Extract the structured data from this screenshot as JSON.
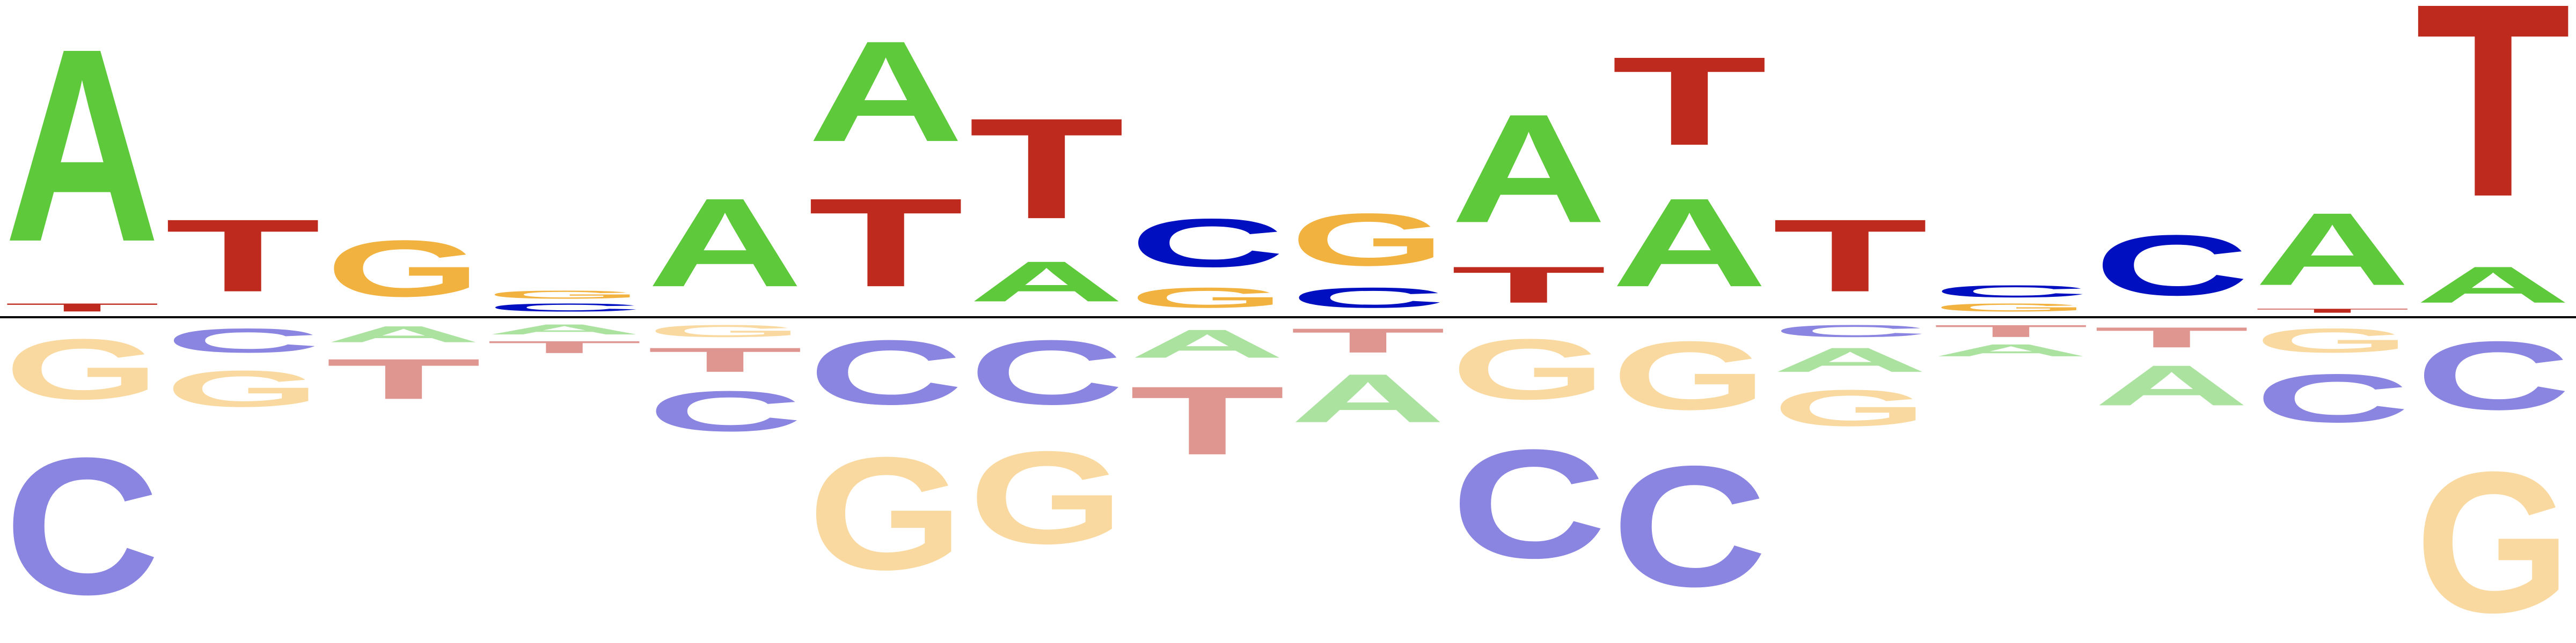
{
  "chart_data": {
    "type": "sequence-logo",
    "note": "Positive letters stacked above baseline (enriched), negative letters below (depleted). Heights in arbitrary units read from glyph sizes.",
    "colors": {
      "A": "#5ec93a",
      "C": "#0010c0",
      "G": "#f2b240",
      "T": "#bf2a1e",
      "A_neg": "#abe2a0",
      "C_neg": "#8a85e0",
      "G_neg": "#f9d9a0",
      "T_neg": "#df9690"
    },
    "positions": [
      {
        "index": 1,
        "up": [
          {
            "letter": "T",
            "h": 0.2
          },
          {
            "letter": "A",
            "h": 4.8
          }
        ],
        "down": [
          {
            "letter": "G",
            "h": 1.5
          },
          {
            "letter": "C",
            "h": 3.4
          }
        ]
      },
      {
        "index": 2,
        "up": [
          {
            "letter": "T",
            "h": 1.8
          }
        ],
        "down": [
          {
            "letter": "C",
            "h": 0.6
          },
          {
            "letter": "G",
            "h": 0.9
          }
        ]
      },
      {
        "index": 3,
        "up": [
          {
            "letter": "G",
            "h": 1.4
          }
        ],
        "down": [
          {
            "letter": "A",
            "h": 0.4
          },
          {
            "letter": "T",
            "h": 1.0
          }
        ]
      },
      {
        "index": 4,
        "up": [
          {
            "letter": "C",
            "h": 0.2
          },
          {
            "letter": "G",
            "h": 0.2
          }
        ],
        "down": [
          {
            "letter": "A",
            "h": 0.25
          },
          {
            "letter": "T",
            "h": 0.3
          }
        ]
      },
      {
        "index": 5,
        "up": [
          {
            "letter": "A",
            "h": 2.2
          }
        ],
        "down": [
          {
            "letter": "G",
            "h": 0.3
          },
          {
            "letter": "T",
            "h": 0.6
          },
          {
            "letter": "C",
            "h": 1.0
          }
        ]
      },
      {
        "index": 6,
        "up": [
          {
            "letter": "T",
            "h": 2.2
          },
          {
            "letter": "A",
            "h": 2.5
          }
        ],
        "down": [
          {
            "letter": "C",
            "h": 1.6
          },
          {
            "letter": "G",
            "h": 2.8
          }
        ]
      },
      {
        "index": 7,
        "up": [
          {
            "letter": "A",
            "h": 1.0
          },
          {
            "letter": "T",
            "h": 2.5
          }
        ],
        "down": [
          {
            "letter": "C",
            "h": 1.6
          },
          {
            "letter": "G",
            "h": 2.3
          }
        ]
      },
      {
        "index": 8,
        "up": [
          {
            "letter": "G",
            "h": 0.5
          },
          {
            "letter": "C",
            "h": 1.2
          }
        ],
        "down": [
          {
            "letter": "A",
            "h": 0.7
          },
          {
            "letter": "T",
            "h": 1.7
          }
        ]
      },
      {
        "index": 9,
        "up": [
          {
            "letter": "C",
            "h": 0.5
          },
          {
            "letter": "G",
            "h": 1.3
          }
        ],
        "down": [
          {
            "letter": "T",
            "h": 0.6
          },
          {
            "letter": "A",
            "h": 1.2
          }
        ]
      },
      {
        "index": 10,
        "up": [
          {
            "letter": "T",
            "h": 0.9
          },
          {
            "letter": "A",
            "h": 2.7
          }
        ],
        "down": [
          {
            "letter": "G",
            "h": 1.5
          },
          {
            "letter": "C",
            "h": 2.7
          }
        ]
      },
      {
        "index": 11,
        "up": [
          {
            "letter": "A",
            "h": 2.2
          },
          {
            "letter": "T",
            "h": 2.2
          }
        ],
        "down": [
          {
            "letter": "G",
            "h": 1.7
          },
          {
            "letter": "C",
            "h": 3.0
          }
        ]
      },
      {
        "index": 12,
        "up": [
          {
            "letter": "T",
            "h": 1.8
          }
        ],
        "down": [
          {
            "letter": "C",
            "h": 0.3
          },
          {
            "letter": "A",
            "h": 0.6
          },
          {
            "letter": "G",
            "h": 0.9
          }
        ]
      },
      {
        "index": 13,
        "up": [
          {
            "letter": "G",
            "h": 0.2
          },
          {
            "letter": "C",
            "h": 0.3
          }
        ],
        "down": [
          {
            "letter": "T",
            "h": 0.3
          },
          {
            "letter": "A",
            "h": 0.3
          }
        ]
      },
      {
        "index": 14,
        "up": [
          {
            "letter": "C",
            "h": 1.5
          }
        ],
        "down": [
          {
            "letter": "T",
            "h": 0.5
          },
          {
            "letter": "A",
            "h": 1.0
          }
        ]
      },
      {
        "index": 15,
        "up": [
          {
            "letter": "T",
            "h": 0.1
          },
          {
            "letter": "A",
            "h": 1.8
          }
        ],
        "down": [
          {
            "letter": "G",
            "h": 0.6
          },
          {
            "letter": "C",
            "h": 1.2
          }
        ]
      },
      {
        "index": 16,
        "up": [
          {
            "letter": "A",
            "h": 0.9
          },
          {
            "letter": "T",
            "h": 4.8
          }
        ],
        "down": [
          {
            "letter": "C",
            "h": 1.7
          },
          {
            "letter": "G",
            "h": 3.5
          }
        ]
      }
    ]
  }
}
